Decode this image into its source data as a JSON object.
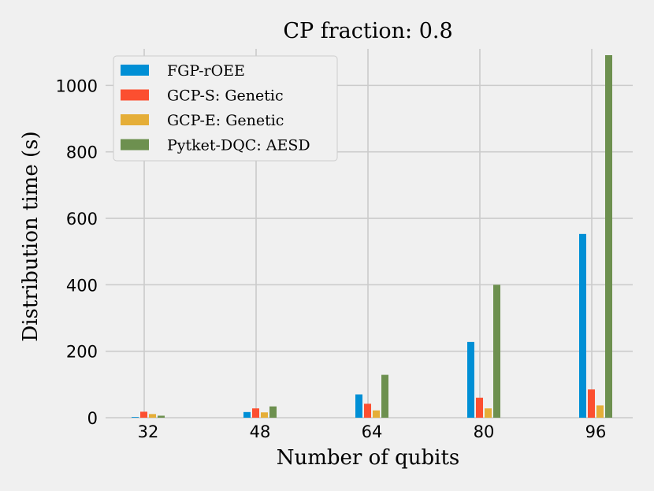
{
  "chart_data": {
    "type": "bar",
    "title": "CP fraction: 0.8",
    "xlabel": "Number of qubits",
    "ylabel": "Distribution time (s)",
    "categories": [
      "32",
      "48",
      "64",
      "80",
      "96"
    ],
    "ylim": [
      0,
      1110
    ],
    "yticks": [
      0,
      200,
      400,
      600,
      800,
      1000
    ],
    "grid": true,
    "legend_position": "top-left",
    "series": [
      {
        "name": "FGP-rOEE",
        "color": "#008fd5",
        "values": [
          2,
          17,
          70,
          228,
          553
        ]
      },
      {
        "name": "GCP-S: Genetic",
        "color": "#fc4f30",
        "values": [
          18,
          28,
          42,
          60,
          85
        ]
      },
      {
        "name": "GCP-E: Genetic",
        "color": "#e5ae38",
        "values": [
          11,
          16,
          22,
          28,
          37
        ]
      },
      {
        "name": "Pytket-DQC: AESD",
        "color": "#6d904f",
        "values": [
          6,
          34,
          129,
          400,
          1091
        ]
      }
    ]
  }
}
